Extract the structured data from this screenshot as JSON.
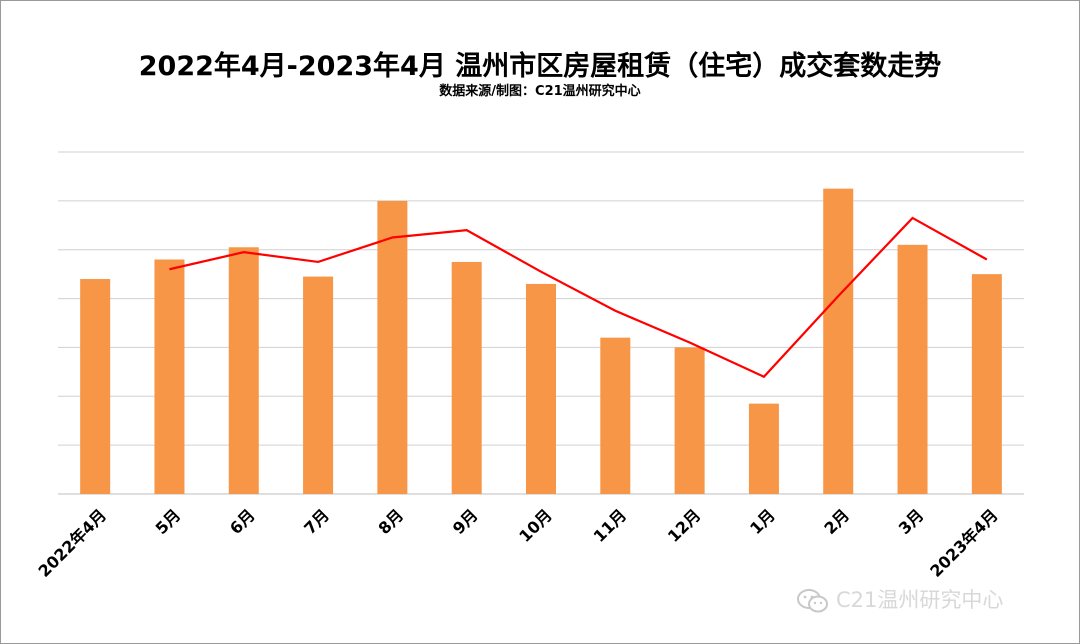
{
  "chart_data": {
    "type": "bar",
    "title": "2022年4月-2023年4月 温州市区房屋租赁（住宅）成交套数走势",
    "subtitle": "数据来源/制图：C21温州研究中心",
    "categories": [
      "2022年4月",
      "5月",
      "6月",
      "7月",
      "8月",
      "9月",
      "10月",
      "11月",
      "12月",
      "1月",
      "2月",
      "3月",
      "2023年4月"
    ],
    "series": [
      {
        "type": "bar",
        "values": [
          4.4,
          4.8,
          5.05,
          4.45,
          6.0,
          4.75,
          4.3,
          3.2,
          3.0,
          1.85,
          6.25,
          5.1,
          4.5
        ],
        "color": "#f79646"
      },
      {
        "type": "line",
        "values": [
          null,
          4.6,
          4.95,
          4.75,
          5.25,
          5.4,
          4.55,
          3.75,
          3.1,
          2.4,
          4.05,
          5.65,
          4.8
        ],
        "color": "#ff0000"
      }
    ],
    "ylim": [
      0,
      7
    ],
    "yticks": [
      0,
      1,
      2,
      3,
      4,
      5,
      6,
      7
    ],
    "y_axis_labels_shown": false,
    "grid": true,
    "legend": "none"
  },
  "watermark": {
    "text": "C21温州研究中心",
    "icon": "wechat-icon"
  }
}
